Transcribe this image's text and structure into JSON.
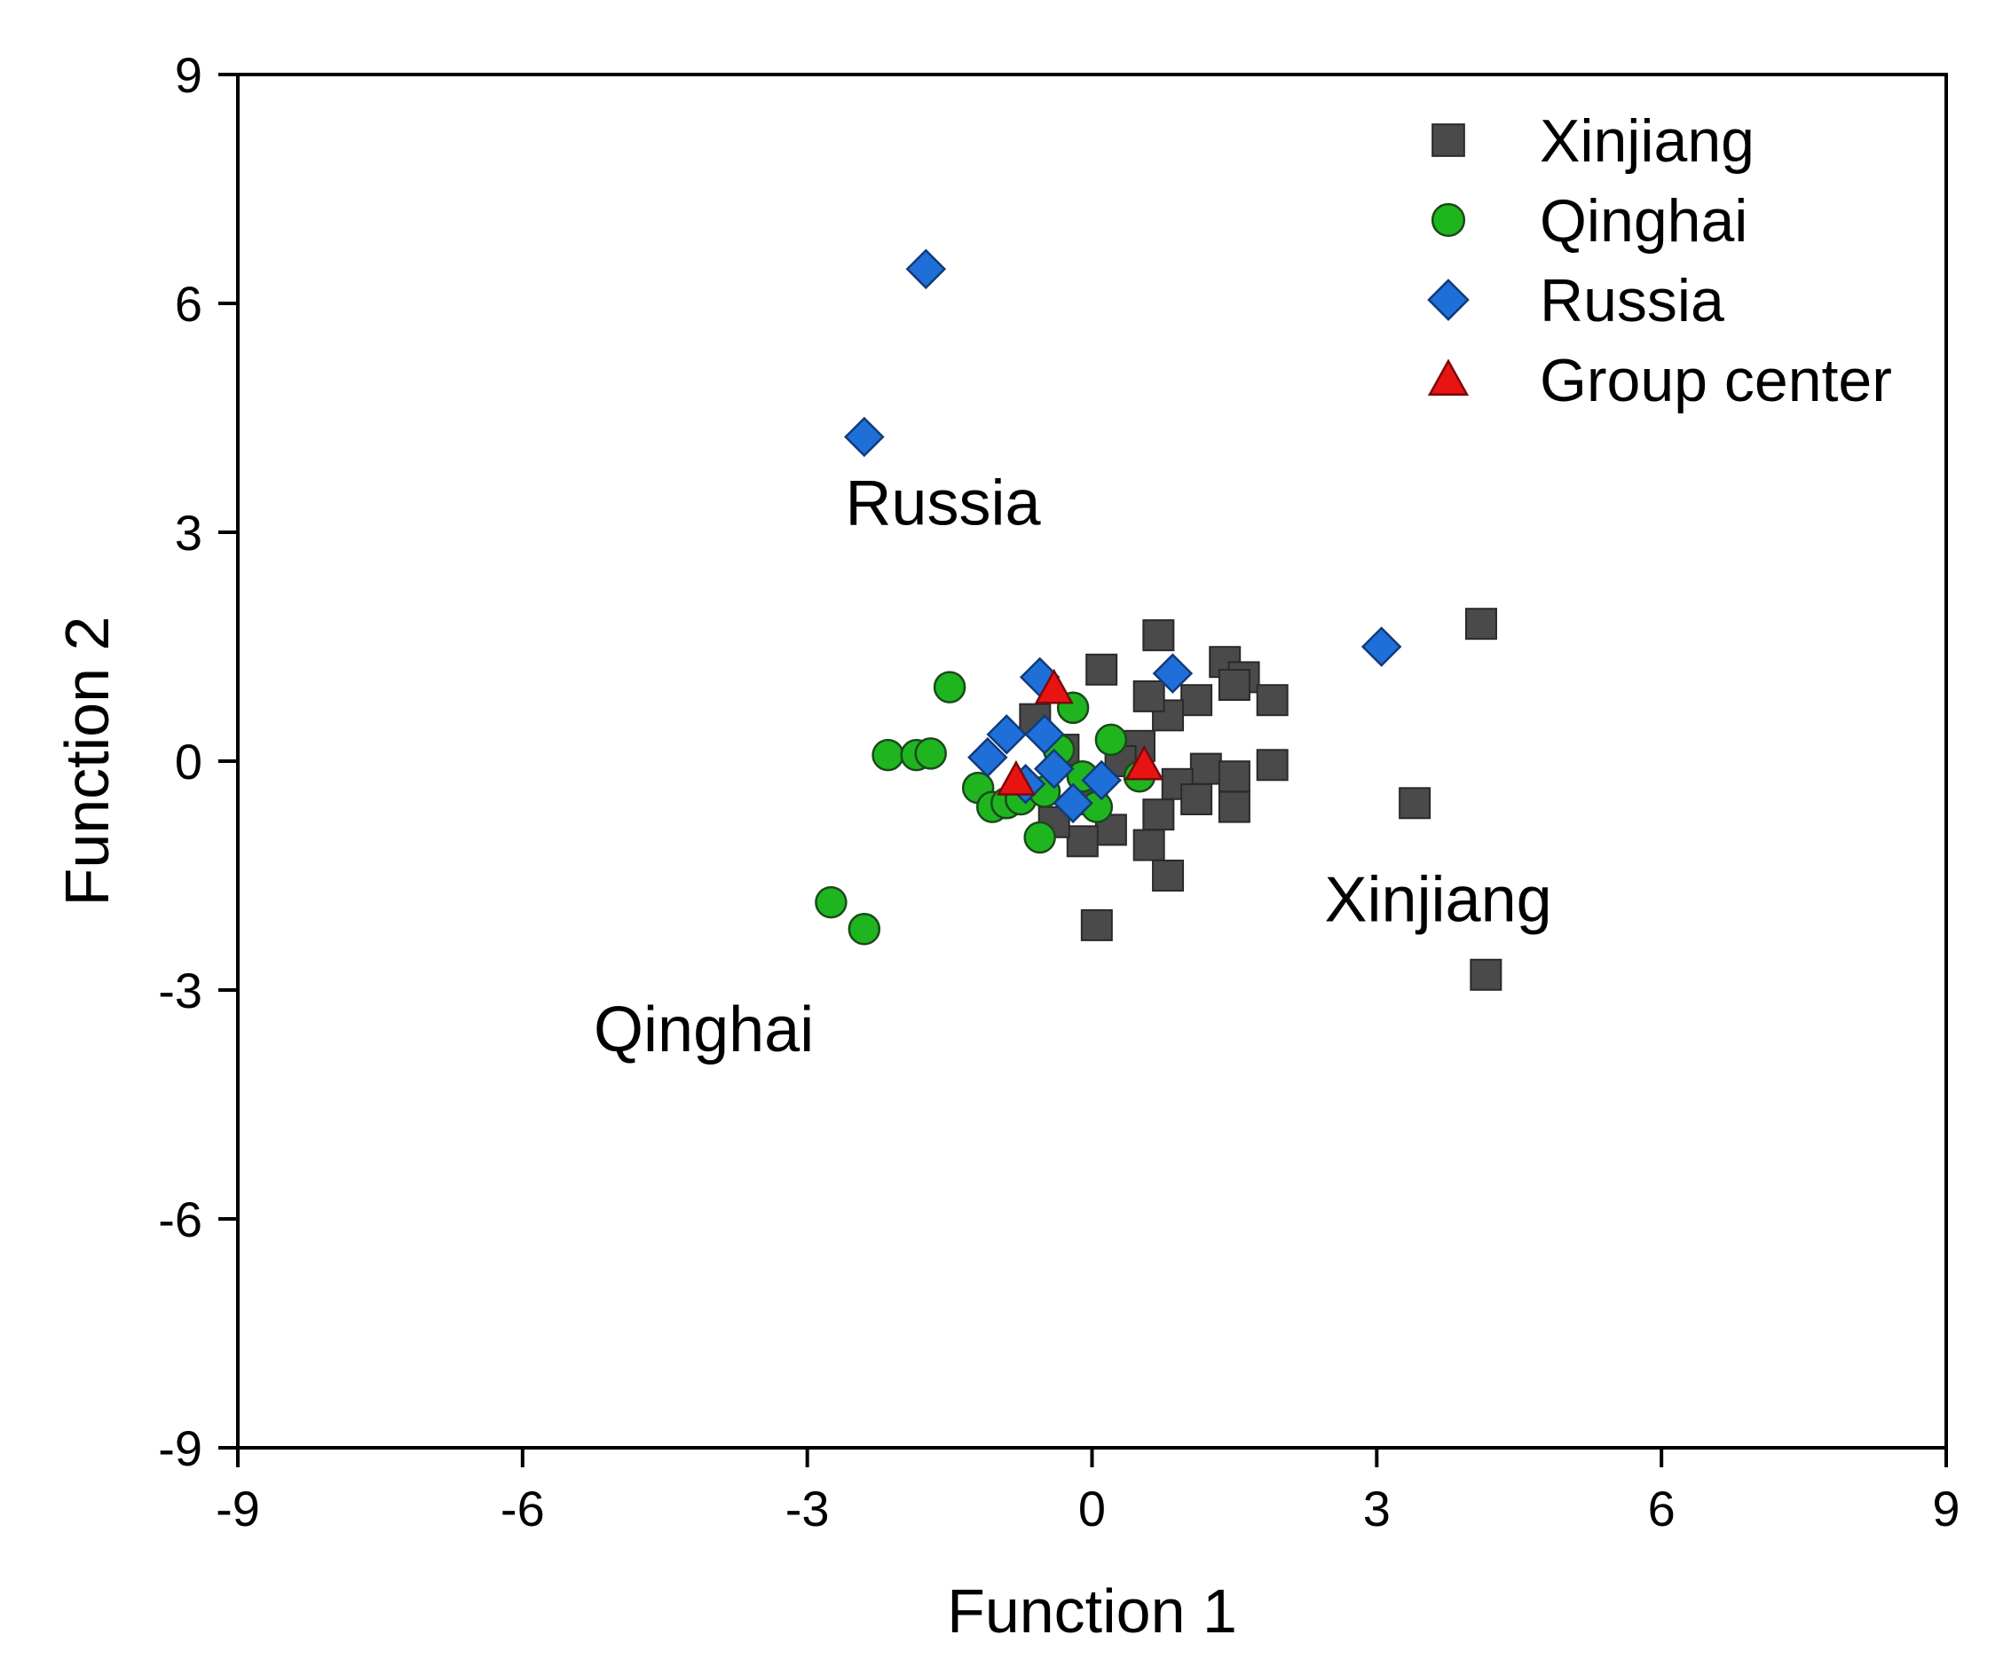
{
  "chart_data": {
    "type": "scatter",
    "xlabel": "Function 1",
    "ylabel": "Function 2",
    "xlim": [
      -9,
      9
    ],
    "ylim": [
      -9,
      9
    ],
    "xticks": [
      "-9",
      "-6",
      "-3",
      "0",
      "3",
      "6",
      "9"
    ],
    "yticks": [
      "9",
      "6",
      "3",
      "0",
      "-3",
      "-6",
      "-9"
    ],
    "grid": false,
    "legend_position": "top-right",
    "annotations": [
      {
        "text": "Russia",
        "x": -2.6,
        "y": 3.1
      },
      {
        "text": "Xinjiang",
        "x": 2.45,
        "y": -2.1
      },
      {
        "text": "Qinghai",
        "x": -5.25,
        "y": -3.8
      }
    ],
    "series": [
      {
        "name": "Xinjiang",
        "marker": "square",
        "color": "#4a4a4a",
        "points": [
          [
            4.1,
            1.8
          ],
          [
            0.7,
            1.65
          ],
          [
            0.1,
            1.2
          ],
          [
            1.4,
            1.3
          ],
          [
            1.6,
            1.1
          ],
          [
            1.9,
            0.8
          ],
          [
            1.5,
            1.0
          ],
          [
            1.1,
            0.8
          ],
          [
            0.8,
            0.6
          ],
          [
            0.5,
            0.2
          ],
          [
            0.3,
            0.0
          ],
          [
            1.9,
            -0.05
          ],
          [
            1.2,
            -0.1
          ],
          [
            1.5,
            -0.2
          ],
          [
            0.9,
            -0.3
          ],
          [
            1.1,
            -0.5
          ],
          [
            1.5,
            -0.6
          ],
          [
            0.7,
            -0.7
          ],
          [
            0.6,
            -1.1
          ],
          [
            0.8,
            -1.5
          ],
          [
            0.2,
            -0.9
          ],
          [
            -0.1,
            -1.05
          ],
          [
            0.05,
            -2.15
          ],
          [
            3.4,
            -0.55
          ],
          [
            4.15,
            -2.8
          ],
          [
            -0.3,
            0.15
          ],
          [
            -0.6,
            0.55
          ],
          [
            0.0,
            -0.5
          ],
          [
            -0.4,
            -0.8
          ],
          [
            0.6,
            0.85
          ]
        ]
      },
      {
        "name": "Qinghai",
        "marker": "circle",
        "color": "#1fb51f",
        "points": [
          [
            -1.5,
            0.97
          ],
          [
            -2.15,
            0.08
          ],
          [
            -1.85,
            0.08
          ],
          [
            -1.7,
            0.1
          ],
          [
            -1.2,
            -0.35
          ],
          [
            -1.05,
            -0.6
          ],
          [
            -0.9,
            -0.55
          ],
          [
            -0.75,
            -0.5
          ],
          [
            -0.55,
            -1.0
          ],
          [
            -0.2,
            0.7
          ],
          [
            0.2,
            0.28
          ],
          [
            -0.35,
            0.15
          ],
          [
            -0.1,
            -0.2
          ],
          [
            0.05,
            -0.6
          ],
          [
            0.5,
            -0.2
          ],
          [
            -0.5,
            -0.4
          ],
          [
            -2.75,
            -1.85
          ],
          [
            -2.4,
            -2.2
          ]
        ]
      },
      {
        "name": "Russia",
        "marker": "diamond",
        "color": "#1f6fd8",
        "points": [
          [
            -1.75,
            6.45
          ],
          [
            -2.4,
            4.25
          ],
          [
            3.05,
            1.5
          ],
          [
            0.85,
            1.15
          ],
          [
            -0.55,
            1.1
          ],
          [
            -1.1,
            0.05
          ],
          [
            -0.9,
            0.35
          ],
          [
            -0.5,
            0.35
          ],
          [
            -0.4,
            -0.1
          ],
          [
            0.1,
            -0.25
          ],
          [
            -0.2,
            -0.55
          ],
          [
            -0.7,
            -0.3
          ]
        ]
      },
      {
        "name": "Group center",
        "marker": "triangle",
        "color": "#e81414",
        "points": [
          [
            -0.4,
            0.95
          ],
          [
            -0.8,
            -0.25
          ],
          [
            0.55,
            -0.05
          ]
        ]
      }
    ]
  }
}
